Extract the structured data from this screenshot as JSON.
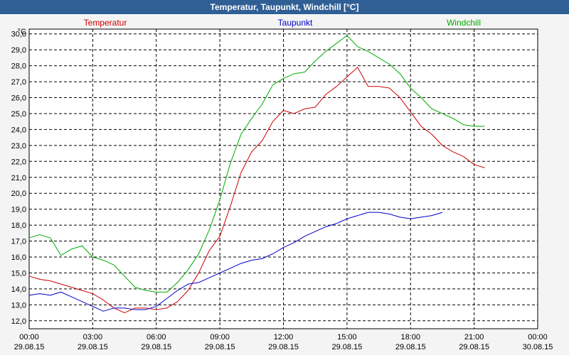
{
  "window": {
    "title": "Temperatur, Taupunkt, Windchill [°C]"
  },
  "chart_data": {
    "type": "line",
    "title": "Temperatur, Taupunkt, Windchill [°C]",
    "ylabel": "°C",
    "ylim": [
      11.5,
      30.3
    ],
    "grid": true,
    "legend_position": "top",
    "x_tick_labels": [
      [
        "00:00",
        "29.08.15"
      ],
      [
        "03:00",
        "29.08.15"
      ],
      [
        "06:00",
        "29.08.15"
      ],
      [
        "09:00",
        "29.08.15"
      ],
      [
        "12:00",
        "29.08.15"
      ],
      [
        "15:00",
        "29.08.15"
      ],
      [
        "18:00",
        "29.08.15"
      ],
      [
        "21:00",
        "29.08.15"
      ],
      [
        "00:00",
        "30.08.15"
      ]
    ],
    "y_tick_labels": [
      "12,0",
      "13,0",
      "14,0",
      "15,0",
      "16,0",
      "17,0",
      "18,0",
      "19,0",
      "20,0",
      "21,0",
      "22,0",
      "23,0",
      "24,0",
      "25,0",
      "26,0",
      "27,0",
      "28,0",
      "29,0",
      "30,0"
    ],
    "x_hours": [
      0,
      0.5,
      1,
      1.5,
      2,
      2.5,
      3,
      3.5,
      4,
      4.5,
      5,
      5.5,
      6,
      6.5,
      7,
      7.5,
      8,
      8.5,
      9,
      9.5,
      10,
      10.5,
      11,
      11.5,
      12,
      12.5,
      13,
      13.5,
      14,
      14.5,
      15,
      15.5,
      16,
      16.5,
      17,
      17.5,
      18,
      18.5,
      19,
      19.5,
      20,
      20.5,
      21,
      21.5,
      22,
      22.5,
      23,
      23.5,
      24
    ],
    "series": [
      {
        "name": "Temperatur",
        "color": "#cc0000",
        "values": [
          14.8,
          14.6,
          14.5,
          14.3,
          14.1,
          13.9,
          13.7,
          13.3,
          12.8,
          12.5,
          12.8,
          12.8,
          12.7,
          12.8,
          13.2,
          13.9,
          15.0,
          16.4,
          17.3,
          19.2,
          21.3,
          22.6,
          23.3,
          24.5,
          25.2,
          25.0,
          25.3,
          25.4,
          26.2,
          26.7,
          27.3,
          27.9,
          26.7,
          26.7,
          26.6,
          26.0,
          25.1,
          24.2,
          23.7,
          23.0,
          22.6,
          22.3,
          21.8,
          21.6
        ]
      },
      {
        "name": "Taupunkt",
        "color": "#0000cc",
        "values": [
          13.6,
          13.7,
          13.6,
          13.8,
          13.5,
          13.2,
          12.9,
          12.6,
          12.8,
          12.8,
          12.7,
          12.7,
          12.9,
          13.4,
          13.9,
          14.3,
          14.4,
          14.7,
          15.0,
          15.3,
          15.6,
          15.8,
          15.9,
          16.2,
          16.6,
          16.9,
          17.3,
          17.6,
          17.9,
          18.1,
          18.4,
          18.6,
          18.8,
          18.8,
          18.7,
          18.5,
          18.4,
          18.5,
          18.6,
          18.8
        ]
      },
      {
        "name": "Windchill",
        "color": "#00aa00",
        "values": [
          17.2,
          17.4,
          17.2,
          16.1,
          16.5,
          16.7,
          16.0,
          15.8,
          15.5,
          14.8,
          14.1,
          13.9,
          13.8,
          13.8,
          14.4,
          15.2,
          16.2,
          17.7,
          19.6,
          21.9,
          23.7,
          24.7,
          25.6,
          26.8,
          27.2,
          27.5,
          27.6,
          28.3,
          28.9,
          29.4,
          29.9,
          29.2,
          28.9,
          28.5,
          28.1,
          27.5,
          26.6,
          26.0,
          25.3,
          25.0,
          24.7,
          24.3,
          24.2,
          24.2
        ]
      }
    ]
  }
}
